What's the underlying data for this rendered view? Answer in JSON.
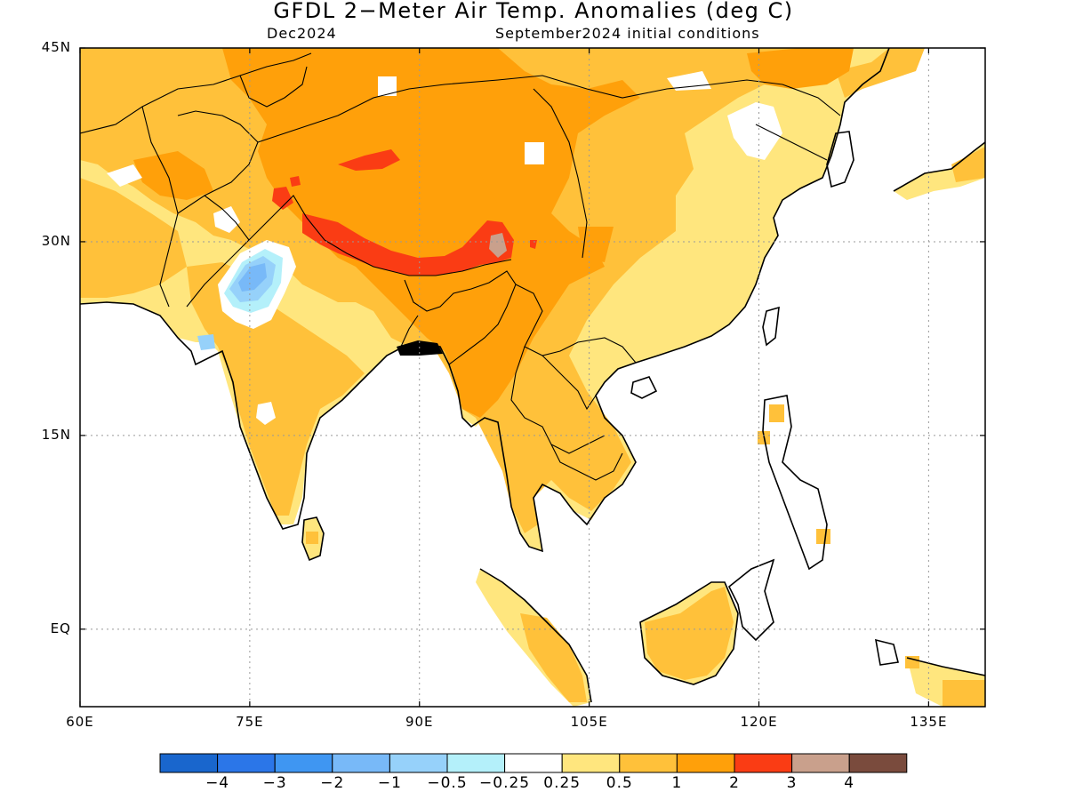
{
  "title": "GFDL 2−Meter Air Temp. Anomalies (deg C)",
  "subtitle_left": "Dec2024",
  "subtitle_right": "September2024 initial conditions",
  "map": {
    "lon_range": [
      60,
      140
    ],
    "lat_range": [
      -6,
      45
    ],
    "lon_ticks": [
      {
        "value": 60,
        "label": "60E"
      },
      {
        "value": 75,
        "label": "75E"
      },
      {
        "value": 90,
        "label": "90E"
      },
      {
        "value": 105,
        "label": "105E"
      },
      {
        "value": 120,
        "label": "120E"
      },
      {
        "value": 135,
        "label": "135E"
      }
    ],
    "lat_ticks": [
      {
        "value": 45,
        "label": "45N"
      },
      {
        "value": 30,
        "label": "30N"
      },
      {
        "value": 15,
        "label": "15N"
      },
      {
        "value": 0,
        "label": "EQ"
      }
    ],
    "grid": true
  },
  "colorbar": {
    "colors": [
      "#1966cd",
      "#2b76e8",
      "#3f96f2",
      "#78b9f8",
      "#96d1fa",
      "#b4f0fa",
      "#ffffff",
      "#ffe67e",
      "#ffc13a",
      "#ffa00a",
      "#fa3c14",
      "#c9a08c",
      "#7a4b3d"
    ],
    "tick_labels": [
      "−4",
      "−3",
      "−2",
      "−1",
      "−0.5",
      "−0.25",
      "0.25",
      "0.5",
      "1",
      "2",
      "3",
      "4"
    ]
  },
  "land_color": "#ffe67e",
  "colors": {
    "level_1": "#ffc13a",
    "level_2": "#ffa00a",
    "level_3": "#fa3c14",
    "level_4": "#c9a08c",
    "cool_1": "#96d1fa",
    "cool_2": "#78b9f8",
    "cool_3": "#b4f0fa"
  }
}
